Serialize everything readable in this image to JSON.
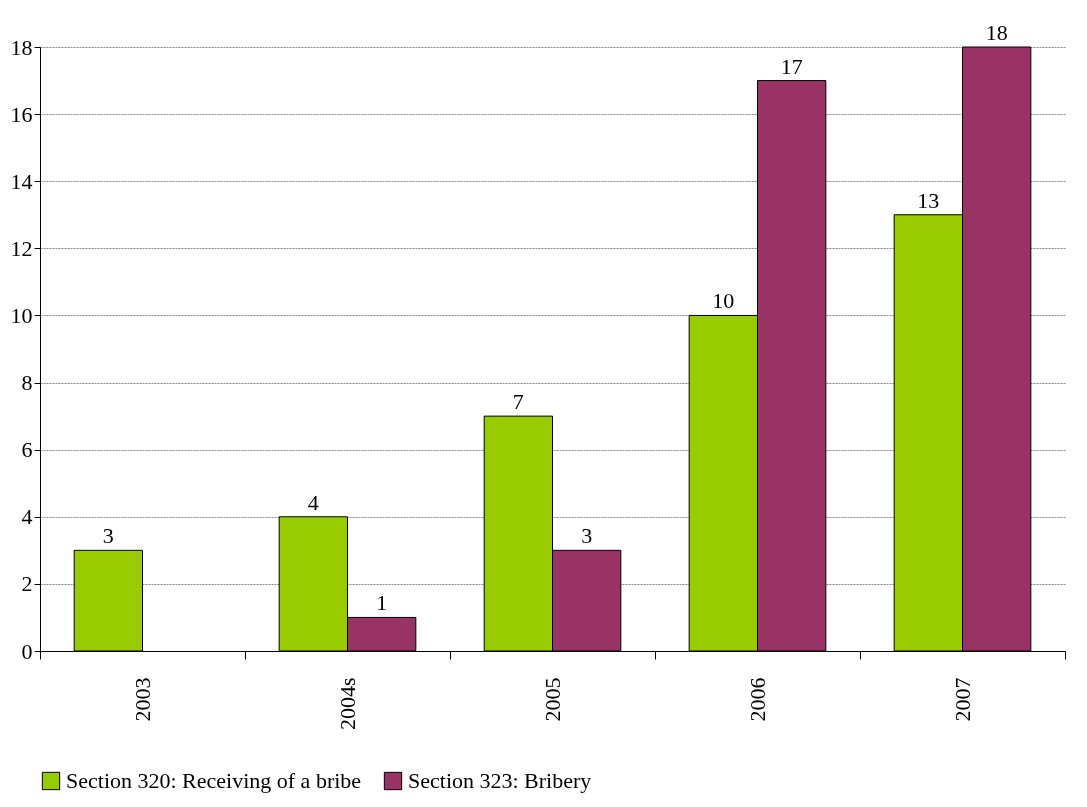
{
  "chart_data": {
    "type": "bar",
    "categories": [
      "2003",
      "2004s",
      "2005",
      "2006",
      "2007"
    ],
    "series": [
      {
        "name": "Section 320: Receiving of a bribe",
        "color": "#99cc00",
        "values": [
          3,
          4,
          7,
          10,
          13
        ]
      },
      {
        "name": "Section 323: Bribery",
        "color": "#993366",
        "values": [
          null,
          1,
          3,
          17,
          18
        ]
      }
    ],
    "ylim": [
      0,
      18
    ],
    "yticks": [
      0,
      2,
      4,
      6,
      8,
      10,
      12,
      14,
      16,
      18
    ],
    "grid": "y",
    "legend": "bottom",
    "data_labels": true
  }
}
